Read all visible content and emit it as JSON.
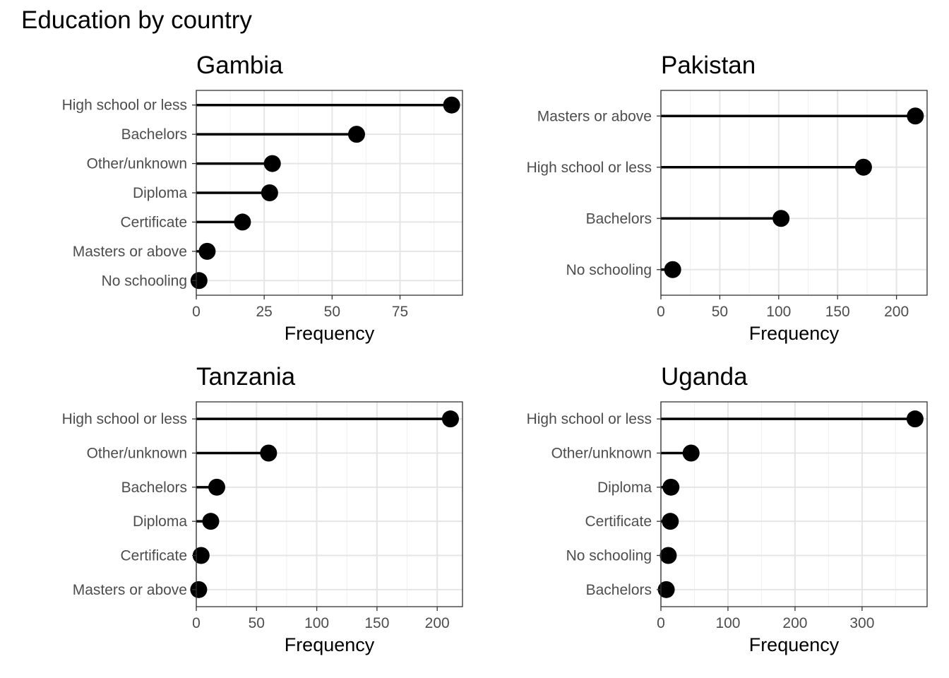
{
  "title": "Education by country",
  "chart_data": [
    {
      "type": "lollipop",
      "title": "Gambia",
      "xlabel": "Frequency",
      "ylabel": "",
      "xlim": [
        0,
        98
      ],
      "xticks": [
        0,
        25,
        50,
        75
      ],
      "grid": true,
      "categories": [
        "High school or less",
        "Bachelors",
        "Other/unknown",
        "Diploma",
        "Certificate",
        "Masters or above",
        "No schooling"
      ],
      "values": [
        94,
        59,
        28,
        27,
        17,
        4,
        1
      ]
    },
    {
      "type": "lollipop",
      "title": "Pakistan",
      "xlabel": "Frequency",
      "ylabel": "",
      "xlim": [
        0,
        226
      ],
      "xticks": [
        0,
        50,
        100,
        150,
        200
      ],
      "grid": true,
      "categories": [
        "Masters or above",
        "High school or less",
        "Bachelors",
        "No schooling"
      ],
      "values": [
        216,
        172,
        102,
        10
      ]
    },
    {
      "type": "lollipop",
      "title": "Tanzania",
      "xlabel": "Frequency",
      "ylabel": "",
      "xlim": [
        0,
        221
      ],
      "xticks": [
        0,
        50,
        100,
        150,
        200
      ],
      "grid": true,
      "categories": [
        "High school or less",
        "Other/unknown",
        "Bachelors",
        "Diploma",
        "Certificate",
        "Masters or above"
      ],
      "values": [
        211,
        60,
        17,
        12,
        4,
        2
      ]
    },
    {
      "type": "lollipop",
      "title": "Uganda",
      "xlabel": "Frequency",
      "ylabel": "",
      "xlim": [
        0,
        397
      ],
      "xticks": [
        0,
        100,
        200,
        300
      ],
      "grid": true,
      "categories": [
        "High school or less",
        "Other/unknown",
        "Diploma",
        "Certificate",
        "No schooling",
        "Bachelors"
      ],
      "values": [
        379,
        45,
        15,
        14,
        11,
        8
      ]
    }
  ]
}
